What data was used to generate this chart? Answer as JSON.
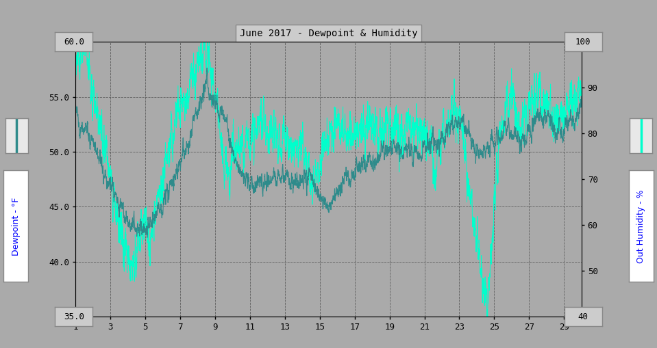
{
  "title": "June 2017 - Dewpoint & Humidity",
  "dewpoint_color": "#2e8b8b",
  "humidity_color": "#00ffcc",
  "background_color": "#aaaaaa",
  "plot_bg_color": "#aaaaaa",
  "yleft_min": 35.0,
  "yleft_max": 60.0,
  "yright_min": 40,
  "yright_max": 100,
  "xlim_min": 1,
  "xlim_max": 30,
  "xticks": [
    1,
    3,
    5,
    7,
    9,
    11,
    13,
    15,
    17,
    19,
    21,
    23,
    25,
    27,
    29
  ],
  "yticks_left": [
    40.0,
    45.0,
    50.0,
    55.0
  ],
  "yticks_right": [
    50,
    60,
    70,
    80,
    90
  ],
  "ylabel_left": "Dewpoint - °F",
  "ylabel_right": "Out Humidity - %",
  "corner_tl": "60.0",
  "corner_bl": "35.0",
  "corner_tr": "100",
  "corner_br": "40"
}
